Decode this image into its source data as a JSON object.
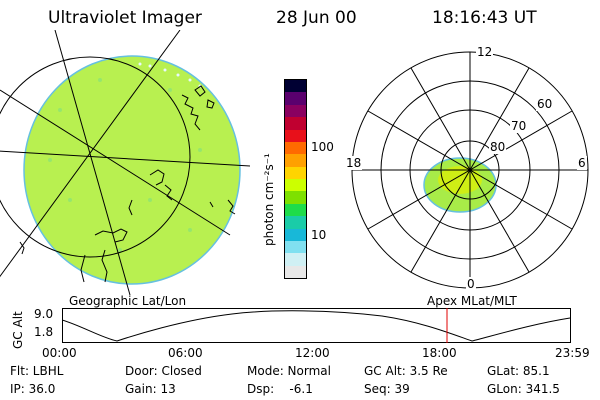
{
  "header": {
    "title": "Ultraviolet Imager",
    "date": "28 Jun 00",
    "time": "18:16:43 UT"
  },
  "colorbar": {
    "unit_label": "photon cm⁻²s⁻¹",
    "ticks": [
      "100",
      "10"
    ],
    "colors": [
      "#000033",
      "#5a006e",
      "#8a0060",
      "#c00030",
      "#e8101a",
      "#ff6a00",
      "#ffa000",
      "#ffd400",
      "#ccff00",
      "#7ee000",
      "#1edc4a",
      "#1acca8",
      "#18b8d8",
      "#80e0f0",
      "#d0f0f4",
      "#e8e8e8"
    ]
  },
  "left_map": {
    "caption": "Geographic Lat/Lon",
    "fill": "#b8f050"
  },
  "right_map": {
    "caption": "Apex MLat/MLT",
    "labels": {
      "top": "12",
      "left": "18",
      "right": "6",
      "bottom": "0"
    },
    "ring_labels": [
      "60",
      "70",
      "80"
    ]
  },
  "altitude_plot": {
    "ylabel": "GC Alt",
    "yticks": [
      "9.0",
      "1.8"
    ],
    "xticks": [
      "00:00",
      "06:00",
      "12:00",
      "18:00",
      "23:59"
    ],
    "marker_color": "#e00000"
  },
  "info": {
    "flt": "Flt: LBHL",
    "ip": "IP: 36.0",
    "door": "Door: Closed",
    "gain": "Gain: 13",
    "mode": "Mode: Normal",
    "dsp": "Dsp:    -6.1",
    "gcalt": "GC Alt: 3.5 Re",
    "seq": "Seq: 39",
    "glat": "GLat: 85.1",
    "glon": "GLon: 341.5"
  }
}
